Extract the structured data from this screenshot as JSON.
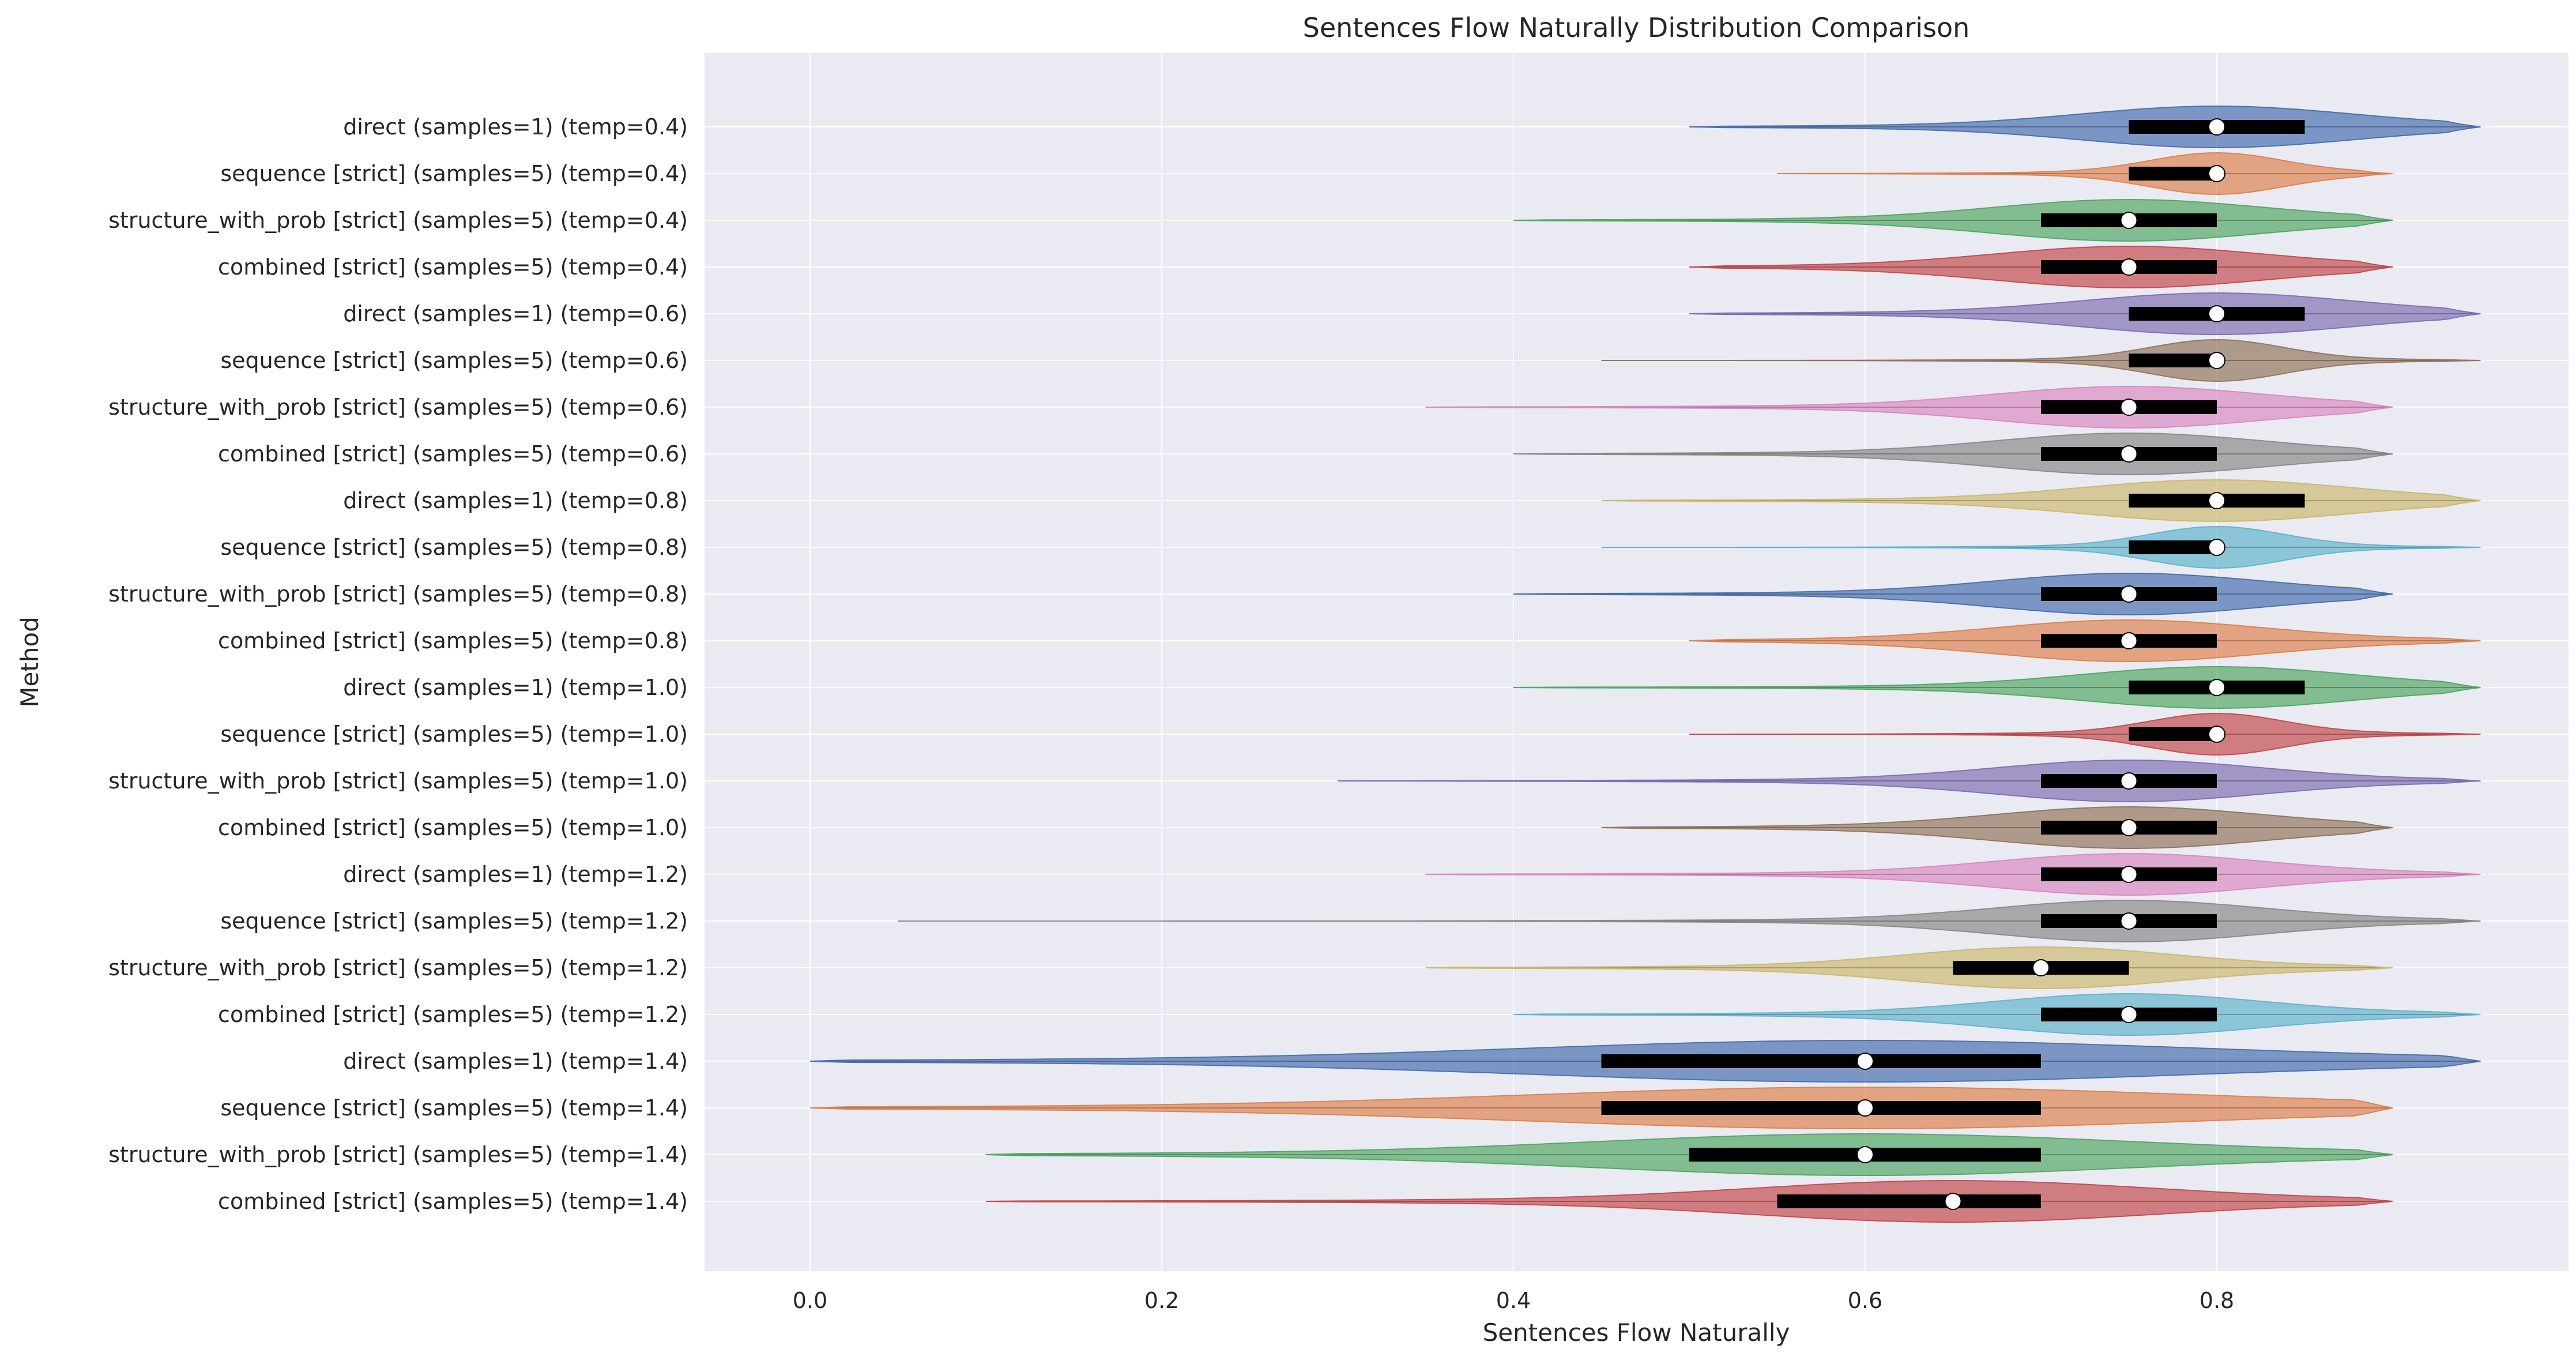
{
  "chart_data": {
    "type": "violin",
    "title": "Sentences Flow Naturally Distribution Comparison",
    "xlabel": "Sentences Flow Naturally",
    "ylabel": "Method",
    "xlim": [
      -0.06,
      1.0
    ],
    "xticks": [
      0.0,
      0.2,
      0.4,
      0.6,
      0.8
    ],
    "xtick_labels": [
      "0.0",
      "0.2",
      "0.4",
      "0.6",
      "0.8"
    ],
    "grid": true,
    "palette": [
      "#4c72b0",
      "#dd8452",
      "#55a868",
      "#c44e52",
      "#8172b3",
      "#937860",
      "#da8bc3",
      "#8c8c8c",
      "#ccb974",
      "#64b5cd"
    ],
    "series": [
      {
        "label": "direct (samples=1) (temp=0.4)",
        "min": 0.5,
        "max": 0.95,
        "q1": 0.75,
        "median": 0.8,
        "q3": 0.85
      },
      {
        "label": "sequence [strict] (samples=5) (temp=0.4)",
        "min": 0.55,
        "max": 0.9,
        "q1": 0.75,
        "median": 0.8,
        "q3": 0.8
      },
      {
        "label": "structure_with_prob [strict] (samples=5) (temp=0.4)",
        "min": 0.4,
        "max": 0.9,
        "q1": 0.7,
        "median": 0.75,
        "q3": 0.8
      },
      {
        "label": "combined [strict] (samples=5) (temp=0.4)",
        "min": 0.5,
        "max": 0.9,
        "q1": 0.7,
        "median": 0.75,
        "q3": 0.8
      },
      {
        "label": "direct (samples=1) (temp=0.6)",
        "min": 0.5,
        "max": 0.95,
        "q1": 0.75,
        "median": 0.8,
        "q3": 0.85
      },
      {
        "label": "sequence [strict] (samples=5) (temp=0.6)",
        "min": 0.45,
        "max": 0.95,
        "q1": 0.75,
        "median": 0.8,
        "q3": 0.8
      },
      {
        "label": "structure_with_prob [strict] (samples=5) (temp=0.6)",
        "min": 0.35,
        "max": 0.9,
        "q1": 0.7,
        "median": 0.75,
        "q3": 0.8
      },
      {
        "label": "combined [strict] (samples=5) (temp=0.6)",
        "min": 0.4,
        "max": 0.9,
        "q1": 0.7,
        "median": 0.75,
        "q3": 0.8
      },
      {
        "label": "direct (samples=1) (temp=0.8)",
        "min": 0.45,
        "max": 0.95,
        "q1": 0.75,
        "median": 0.8,
        "q3": 0.85
      },
      {
        "label": "sequence [strict] (samples=5) (temp=0.8)",
        "min": 0.45,
        "max": 0.95,
        "q1": 0.75,
        "median": 0.8,
        "q3": 0.8
      },
      {
        "label": "structure_with_prob [strict] (samples=5) (temp=0.8)",
        "min": 0.4,
        "max": 0.9,
        "q1": 0.7,
        "median": 0.75,
        "q3": 0.8
      },
      {
        "label": "combined [strict] (samples=5) (temp=0.8)",
        "min": 0.5,
        "max": 0.95,
        "q1": 0.7,
        "median": 0.75,
        "q3": 0.8
      },
      {
        "label": "direct (samples=1) (temp=1.0)",
        "min": 0.4,
        "max": 0.95,
        "q1": 0.75,
        "median": 0.8,
        "q3": 0.85
      },
      {
        "label": "sequence [strict] (samples=5) (temp=1.0)",
        "min": 0.5,
        "max": 0.95,
        "q1": 0.75,
        "median": 0.8,
        "q3": 0.8
      },
      {
        "label": "structure_with_prob [strict] (samples=5) (temp=1.0)",
        "min": 0.3,
        "max": 0.95,
        "q1": 0.7,
        "median": 0.75,
        "q3": 0.8
      },
      {
        "label": "combined [strict] (samples=5) (temp=1.0)",
        "min": 0.45,
        "max": 0.9,
        "q1": 0.7,
        "median": 0.75,
        "q3": 0.8
      },
      {
        "label": "direct (samples=1) (temp=1.2)",
        "min": 0.35,
        "max": 0.95,
        "q1": 0.7,
        "median": 0.75,
        "q3": 0.8
      },
      {
        "label": "sequence [strict] (samples=5) (temp=1.2)",
        "min": 0.05,
        "max": 0.95,
        "q1": 0.7,
        "median": 0.75,
        "q3": 0.8
      },
      {
        "label": "structure_with_prob [strict] (samples=5) (temp=1.2)",
        "min": 0.35,
        "max": 0.9,
        "q1": 0.65,
        "median": 0.7,
        "q3": 0.75
      },
      {
        "label": "combined [strict] (samples=5) (temp=1.2)",
        "min": 0.4,
        "max": 0.95,
        "q1": 0.7,
        "median": 0.75,
        "q3": 0.8
      },
      {
        "label": "direct (samples=1) (temp=1.4)",
        "min": 0.0,
        "max": 0.95,
        "q1": 0.45,
        "median": 0.6,
        "q3": 0.7
      },
      {
        "label": "sequence [strict] (samples=5) (temp=1.4)",
        "min": 0.0,
        "max": 0.9,
        "q1": 0.45,
        "median": 0.6,
        "q3": 0.7
      },
      {
        "label": "structure_with_prob [strict] (samples=5) (temp=1.4)",
        "min": 0.1,
        "max": 0.9,
        "q1": 0.5,
        "median": 0.6,
        "q3": 0.7
      },
      {
        "label": "combined [strict] (samples=5) (temp=1.4)",
        "min": 0.1,
        "max": 0.9,
        "q1": 0.55,
        "median": 0.65,
        "q3": 0.7
      }
    ]
  }
}
